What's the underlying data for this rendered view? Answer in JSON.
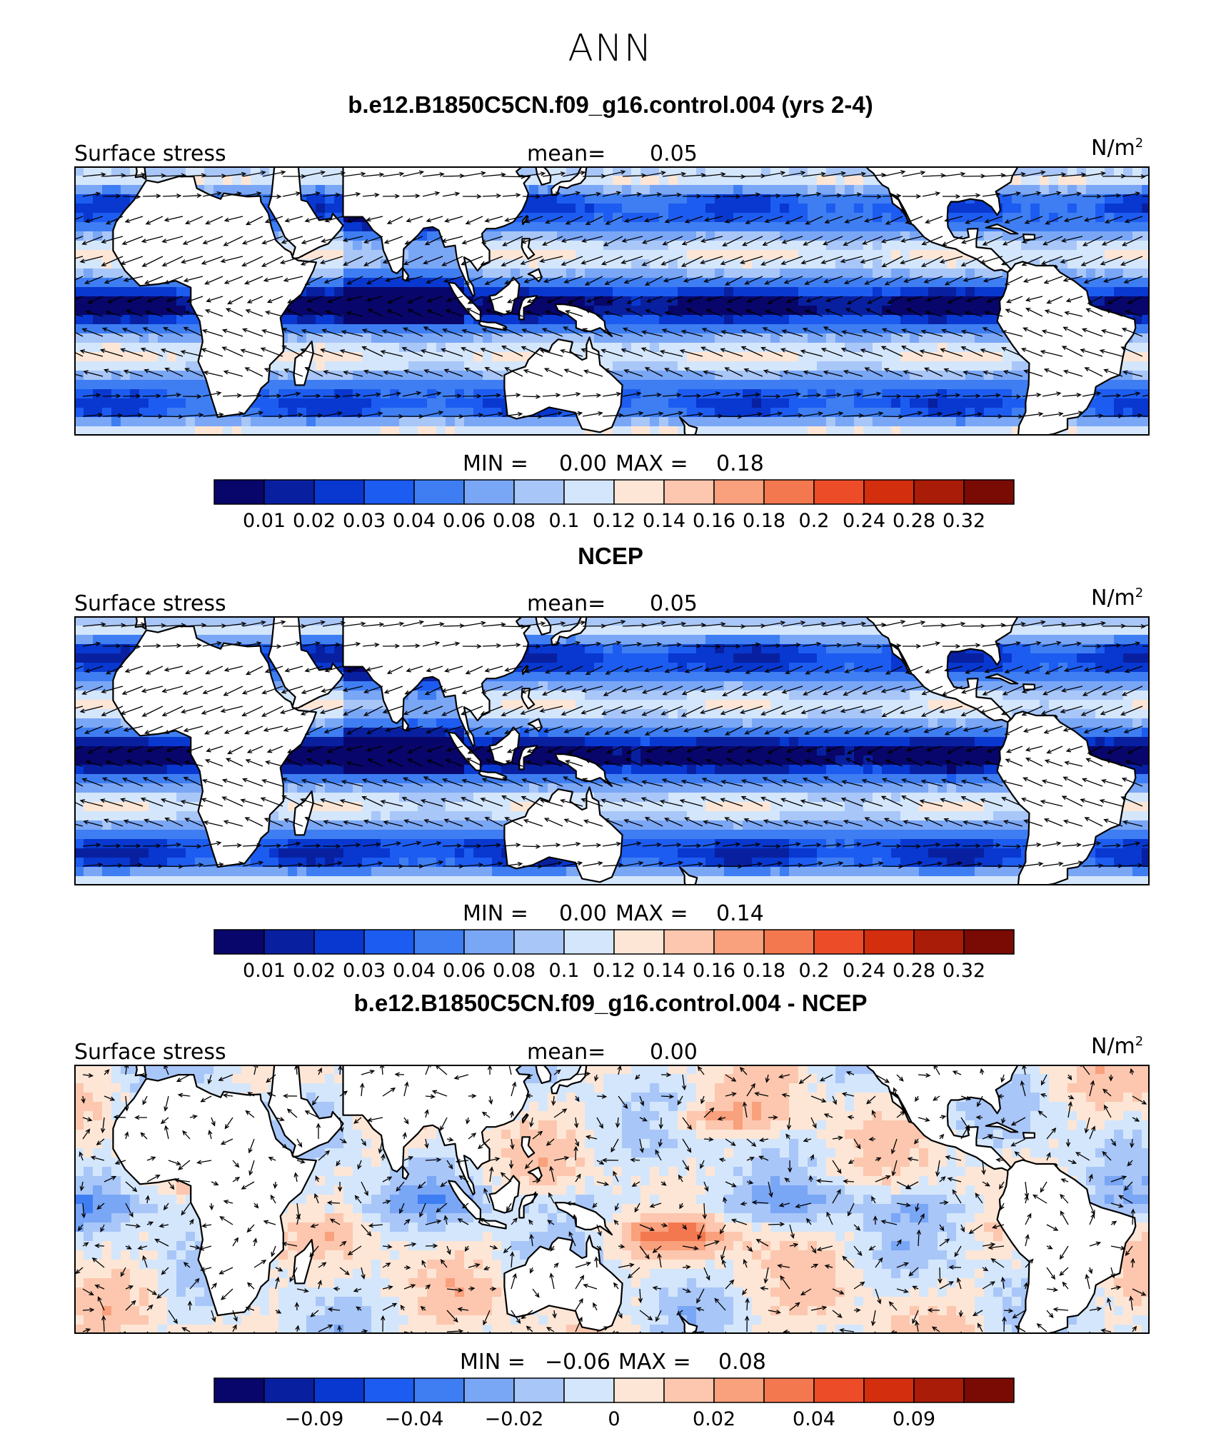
{
  "super_title": "ANN",
  "colors": {
    "palette": [
      "#08066a",
      "#0820a0",
      "#0838d0",
      "#1d5cf0",
      "#3e7ef2",
      "#7aa6f6",
      "#a8c6f8",
      "#d4e6fb",
      "#fde6d6",
      "#fcc7ae",
      "#f9a07c",
      "#f3784f",
      "#ec4d28",
      "#d32e0e",
      "#a81c08",
      "#7a0a04"
    ],
    "land": "#ffffff",
    "coast": "#000000"
  },
  "panels": [
    {
      "title": "b.e12.B1850C5CN.f09_g16.control.004 (yrs 2-4)",
      "left_label": "Surface stress",
      "mean_label": "mean=",
      "mean_value": "0.05",
      "unit_base": "N/m",
      "unit_exp": "2",
      "min_label": "MIN =",
      "min_value": "0.00",
      "max_label": "MAX =",
      "max_value": "0.18",
      "colorbar_ticks": [
        "0.01",
        "0.02",
        "0.03",
        "0.04",
        "0.06",
        "0.08",
        "0.1",
        "0.12",
        "0.14",
        "0.16",
        "0.18",
        "0.2",
        "0.24",
        "0.28",
        "0.32"
      ],
      "tick_every": 1,
      "mode": "model"
    },
    {
      "title": "NCEP",
      "left_label": "Surface stress",
      "mean_label": "mean=",
      "mean_value": "0.05",
      "unit_base": "N/m",
      "unit_exp": "2",
      "min_label": "MIN =",
      "min_value": "0.00",
      "max_label": "MAX =",
      "max_value": "0.14",
      "colorbar_ticks": [
        "0.01",
        "0.02",
        "0.03",
        "0.04",
        "0.06",
        "0.08",
        "0.1",
        "0.12",
        "0.14",
        "0.16",
        "0.18",
        "0.2",
        "0.24",
        "0.28",
        "0.32"
      ],
      "tick_every": 1,
      "mode": "obs"
    },
    {
      "title": "b.e12.B1850C5CN.f09_g16.control.004 - NCEP",
      "left_label": "Surface stress",
      "mean_label": "mean=",
      "mean_value": "0.00",
      "unit_base": "N/m",
      "unit_exp": "2",
      "min_label": "MIN =",
      "min_value": "−0.06",
      "max_label": "MAX =",
      "max_value": "0.08",
      "colorbar_ticks": [
        "−0.09",
        "−0.04",
        "−0.02",
        "0",
        "0.02",
        "0.04",
        "0.09"
      ],
      "tick_every": 2,
      "mode": "diff"
    }
  ],
  "chart_data": {
    "type": "heatmap",
    "variable": "Surface stress",
    "units": "N/m^2",
    "season": "ANN",
    "fields": [
      {
        "name": "b.e12.B1850C5CN.f09_g16.control.004 (yrs 2-4)",
        "mean": 0.05,
        "min": 0.0,
        "max": 0.18
      },
      {
        "name": "NCEP",
        "mean": 0.05,
        "min": 0.0,
        "max": 0.14
      },
      {
        "name": "b.e12.B1850C5CN.f09_g16.control.004 - NCEP",
        "mean": 0.0,
        "min": -0.06,
        "max": 0.08
      }
    ],
    "contour_levels_abs": [
      0.01,
      0.02,
      0.03,
      0.04,
      0.06,
      0.08,
      0.1,
      0.12,
      0.14,
      0.16,
      0.18,
      0.2,
      0.24,
      0.28,
      0.32
    ],
    "contour_levels_diff": [
      -0.09,
      -0.04,
      -0.02,
      0,
      0.02,
      0.04,
      0.09
    ],
    "overlay": "wind stress vectors"
  }
}
